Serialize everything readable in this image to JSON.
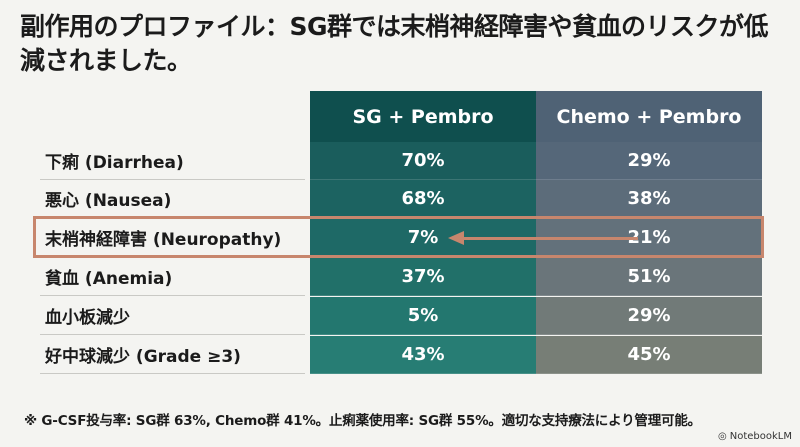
{
  "title": "副作用のプロファイル：SG群では末梢神経障害や貧血のリスクが低減されました。",
  "columns": {
    "sg": "SG + Pembro",
    "chemo": "Chemo + Pembro"
  },
  "rows": [
    {
      "label": "下痢 (Diarrhea)",
      "sg": "70%",
      "chemo": "29%"
    },
    {
      "label": "悪心 (Nausea)",
      "sg": "68%",
      "chemo": "38%"
    },
    {
      "label": "末梢神経障害 (Neuropathy)",
      "sg": "7%",
      "chemo": "21%"
    },
    {
      "label": "貧血 (Anemia)",
      "sg": "37%",
      "chemo": "51%"
    },
    {
      "label": "血小板減少",
      "sg": "5%",
      "chemo": "29%"
    },
    {
      "label": "好中球減少 (Grade ≥3)",
      "sg": "43%",
      "chemo": "45%"
    }
  ],
  "footnote": "※ G-CSF投与率: SG群 63%, Chemo群 41%。止痢薬使用率: SG群 55%。適切な支持療法により管理可能。",
  "watermark": "NotebookLM",
  "colors": {
    "sg_header": "#0f4f4e",
    "chemo_header": "#4f6275",
    "sg_rows": [
      "#1a5d5c",
      "#1c6361",
      "#1e6966",
      "#217069",
      "#23776f",
      "#277d74"
    ],
    "chemo_rows": [
      "#556779",
      "#5c6c7a",
      "#63717b",
      "#6a757a",
      "#717a78",
      "#777e76"
    ],
    "highlight": "#c7866d"
  }
}
